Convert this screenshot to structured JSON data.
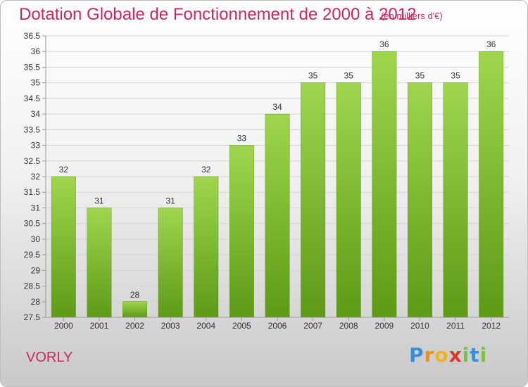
{
  "chart_data": {
    "type": "bar",
    "title": "Dotation Globale de Fonctionnement de 2000 à 2012",
    "subtitle": "(en milliers d'€)",
    "categories": [
      "2000",
      "2001",
      "2002",
      "2003",
      "2004",
      "2005",
      "2006",
      "2007",
      "2008",
      "2009",
      "2010",
      "2011",
      "2012"
    ],
    "values": [
      32,
      31,
      28,
      31,
      32,
      33,
      34,
      35,
      35,
      36,
      35,
      35,
      36
    ],
    "yticks": [
      "27.5",
      "28",
      "28.5",
      "29",
      "29.5",
      "30",
      "30.5",
      "31",
      "31.5",
      "32",
      "32.5",
      "33",
      "33.5",
      "34",
      "34.5",
      "35",
      "35.5",
      "36",
      "36.5"
    ],
    "ylim": [
      27.5,
      36.5
    ],
    "xlabel": "",
    "ylabel": "",
    "grid": true,
    "bar_color": "#7ab82e"
  },
  "footer": {
    "commune": "VORLY",
    "brand_letters": [
      "P",
      "r",
      "o",
      "x",
      "i",
      "t",
      "i"
    ]
  }
}
